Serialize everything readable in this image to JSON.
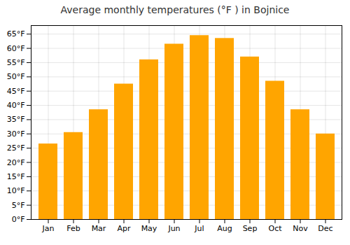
{
  "chart_data": {
    "type": "bar",
    "title": "Average monthly temperatures (°F ) in Bojnice",
    "categories": [
      "Jan",
      "Feb",
      "Mar",
      "Apr",
      "May",
      "Jun",
      "Jul",
      "Aug",
      "Sep",
      "Oct",
      "Nov",
      "Dec"
    ],
    "values": [
      26.5,
      30.5,
      38.5,
      47.5,
      56,
      61.5,
      64.5,
      63.5,
      57,
      48.5,
      38.5,
      30
    ],
    "color": "#FFA500",
    "ylim": [
      0,
      68
    ],
    "yticks": [
      {
        "value": 0,
        "label": "0°F"
      },
      {
        "value": 5,
        "label": "5°F"
      },
      {
        "value": 10,
        "label": "10°F"
      },
      {
        "value": 15,
        "label": "15°F"
      },
      {
        "value": 20,
        "label": "20°F"
      },
      {
        "value": 25,
        "label": "25°F"
      },
      {
        "value": 30,
        "label": "30°F"
      },
      {
        "value": 35,
        "label": "35°F"
      },
      {
        "value": 40,
        "label": "40°F"
      },
      {
        "value": 45,
        "label": "45°F"
      },
      {
        "value": 50,
        "label": "50°F"
      },
      {
        "value": 55,
        "label": "55°F"
      },
      {
        "value": 60,
        "label": "60°F"
      },
      {
        "value": 65,
        "label": "65°F"
      }
    ],
    "grid": true
  }
}
